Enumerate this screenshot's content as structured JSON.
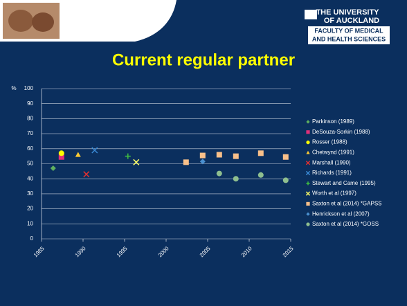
{
  "header": {
    "logo_line1": "THE UNIVERSITY",
    "logo_line2": "OF AUCKLAND",
    "logo_line3": "FACULTY OF MEDICAL",
    "logo_line4": "AND HEALTH SCIENCES"
  },
  "chart_data": {
    "type": "scatter",
    "title": "Current regular partner",
    "y_label": "%",
    "xlim": [
      1985,
      2015
    ],
    "xticks": [
      1985,
      1990,
      1995,
      2000,
      2005,
      2010,
      2015
    ],
    "ylim": [
      0,
      100
    ],
    "yticks": [
      0,
      10,
      20,
      30,
      40,
      50,
      60,
      70,
      80,
      90,
      100
    ],
    "grid": true,
    "legend": "right",
    "series": [
      {
        "name": "Parkinson (1989)",
        "color": "#5fb05f",
        "marker": "diamond",
        "x": [
          1986.4
        ],
        "values": [
          47
        ]
      },
      {
        "name": "DeSouza-Sorkin (1988)",
        "color": "#e0307a",
        "marker": "square",
        "x": [
          1987.4
        ],
        "values": [
          54.5
        ]
      },
      {
        "name": "Rosser (1988)",
        "color": "#ffff00",
        "marker": "circle",
        "x": [
          1987.4
        ],
        "values": [
          57
        ]
      },
      {
        "name": "Chetwynd (1991)",
        "color": "#ffcc33",
        "marker": "triangle",
        "x": [
          1989.4
        ],
        "values": [
          56
        ]
      },
      {
        "name": "Marshall (1990)",
        "color": "#e03030",
        "marker": "cross",
        "x": [
          1990.4
        ],
        "values": [
          43
        ]
      },
      {
        "name": "Richards (1991)",
        "color": "#3a8ad6",
        "marker": "cross",
        "x": [
          1991.4
        ],
        "values": [
          59
        ]
      },
      {
        "name": "Stewart and Came (1995)",
        "color": "#40c040",
        "marker": "plus",
        "x": [
          1995.4
        ],
        "values": [
          55
        ]
      },
      {
        "name": "Worth et al (1997)",
        "color": "#ffff66",
        "marker": "cross",
        "x": [
          1996.4
        ],
        "values": [
          51
        ]
      },
      {
        "name": "Saxton et al (2014) *GAPSS",
        "color": "#f9c08a",
        "marker": "square",
        "x": [
          2002.4,
          2004.4,
          2006.4,
          2008.4,
          2011.4,
          2014.4
        ],
        "values": [
          51,
          55.5,
          56,
          55,
          57,
          54.5
        ]
      },
      {
        "name": "Henrickson et al (2007)",
        "color": "#4a90d0",
        "marker": "diamond",
        "x": [
          2004.4
        ],
        "values": [
          51.5
        ]
      },
      {
        "name": "Saxton et al (2014) *GOSS",
        "color": "#8fbf8f",
        "marker": "circle",
        "x": [
          2006.4,
          2008.4,
          2011.4,
          2014.4
        ],
        "values": [
          43.5,
          40,
          42.5,
          39
        ]
      }
    ]
  }
}
